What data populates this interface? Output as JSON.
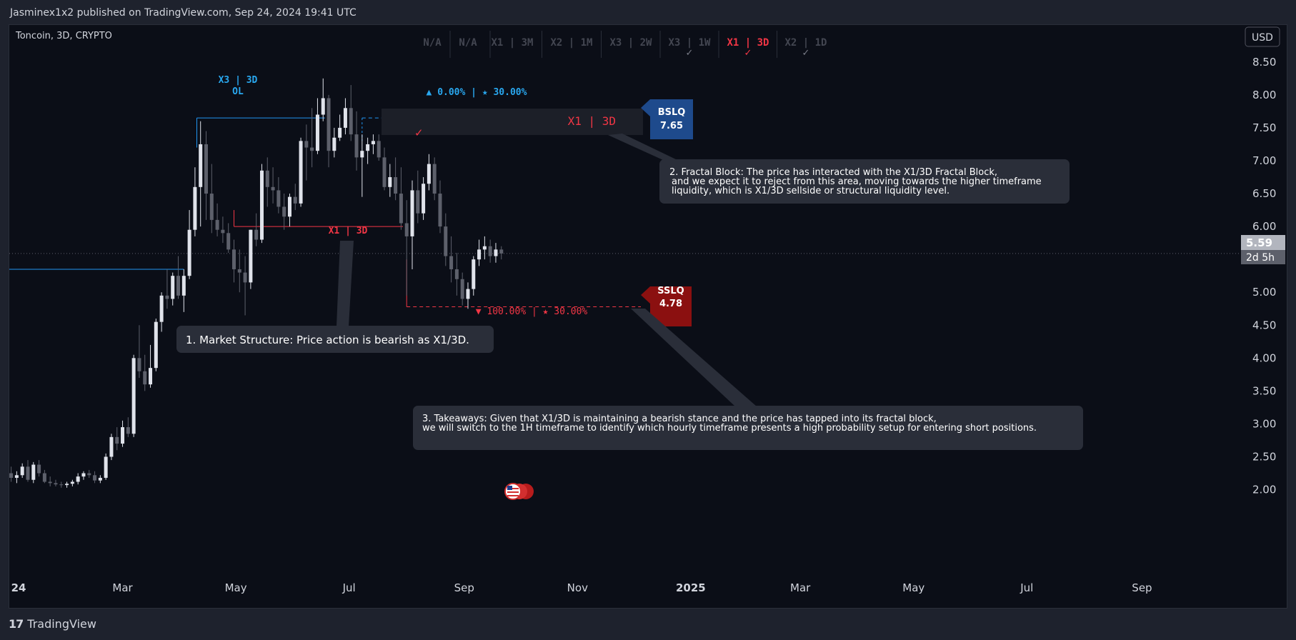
{
  "header": {
    "publish_line": "Jasminex1x2 published on TradingView.com, Sep 24, 2024 19:41 UTC"
  },
  "chart": {
    "symbol_line": "Toncoin, 3D, CRYPTO",
    "currency_button": "USD",
    "timeframe_boxes": [
      "N/A",
      "N/A",
      "X1 | 3M",
      "X2 | 1M",
      "X3 | 2W",
      "X3 | 1W",
      "X1 | 3D",
      "X2 | 1D"
    ],
    "price_axis_labels": [
      "8.50",
      "8.00",
      "7.50",
      "7.00",
      "6.50",
      "6.00",
      "5.50",
      "5.00",
      "4.50",
      "4.00",
      "3.50",
      "3.00",
      "2.50",
      "2.00"
    ],
    "time_axis_labels": [
      "24",
      "Mar",
      "May",
      "Jul",
      "Sep",
      "Nov",
      "2025",
      "Mar",
      "May",
      "Jul",
      "Sep"
    ],
    "current_price": "5.59",
    "countdown": "2d 5h",
    "annotations": {
      "ol_label_line1": "X3 | 3D",
      "ol_label_line2": "OL",
      "top_stats": "▲ 0.00% | ★ 30.00%",
      "fractal_block_label": "X1 | 3D",
      "bslq_name": "BSLQ",
      "bslq_value": "7.65",
      "structure_label": "X1 | 3D",
      "sslq_name": "SSLQ",
      "sslq_value": "4.78",
      "bottom_stats": "▼ 100.00% | ★ 30.00%"
    },
    "notes": {
      "note1": "1. Market Structure: Price action is bearish as X1/3D.",
      "note2_line1": "2. Fractal Block: The price has interacted with the X1/3D Fractal Block,",
      "note2_line2": "and we expect it to reject from this area, moving towards the higher timeframe",
      "note2_line3": "liquidity, which is X1/3D sellside or structural liquidity level.",
      "note3_line1": "3. Takeaways: Given that X1/3D is maintaining a bearish stance and the price has tapped into its fractal block,",
      "note3_line2": "we will switch to the 1H timeframe to identify which hourly timeframe presents a high probability setup for entering short positions."
    }
  },
  "footer": {
    "brand": "TradingView"
  },
  "colors": {
    "background": "#0b0e17",
    "candle_up": "#e0e3eb",
    "candle_down": "#5d606b",
    "accent_red": "#f23645",
    "accent_blue": "#2196f3",
    "bslq_box": "#1e4a8c",
    "sslq_box": "#8b1010"
  },
  "chart_data": {
    "type": "candlestick",
    "symbol": "Toncoin",
    "interval": "3D",
    "candles": [
      {
        "d": "2024-01-01",
        "o": 2.25,
        "h": 2.35,
        "l": 2.12,
        "c": 2.18
      },
      {
        "d": "2024-01-04",
        "o": 2.18,
        "h": 2.28,
        "l": 2.1,
        "c": 2.22
      },
      {
        "d": "2024-01-07",
        "o": 2.22,
        "h": 2.4,
        "l": 2.18,
        "c": 2.35
      },
      {
        "d": "2024-01-10",
        "o": 2.35,
        "h": 2.45,
        "l": 2.12,
        "c": 2.15
      },
      {
        "d": "2024-01-13",
        "o": 2.15,
        "h": 2.42,
        "l": 2.1,
        "c": 2.38
      },
      {
        "d": "2024-01-16",
        "o": 2.38,
        "h": 2.45,
        "l": 2.2,
        "c": 2.25
      },
      {
        "d": "2024-01-19",
        "o": 2.25,
        "h": 2.3,
        "l": 2.1,
        "c": 2.12
      },
      {
        "d": "2024-01-22",
        "o": 2.12,
        "h": 2.2,
        "l": 2.05,
        "c": 2.1
      },
      {
        "d": "2024-01-25",
        "o": 2.1,
        "h": 2.15,
        "l": 2.05,
        "c": 2.08
      },
      {
        "d": "2024-01-28",
        "o": 2.08,
        "h": 2.12,
        "l": 2.03,
        "c": 2.07
      },
      {
        "d": "2024-01-31",
        "o": 2.07,
        "h": 2.12,
        "l": 2.03,
        "c": 2.09
      },
      {
        "d": "2024-02-03",
        "o": 2.09,
        "h": 2.15,
        "l": 2.05,
        "c": 2.12
      },
      {
        "d": "2024-02-06",
        "o": 2.12,
        "h": 2.25,
        "l": 2.08,
        "c": 2.2
      },
      {
        "d": "2024-02-09",
        "o": 2.2,
        "h": 2.28,
        "l": 2.15,
        "c": 2.25
      },
      {
        "d": "2024-02-12",
        "o": 2.25,
        "h": 2.3,
        "l": 2.18,
        "c": 2.22
      },
      {
        "d": "2024-02-15",
        "o": 2.22,
        "h": 2.28,
        "l": 2.1,
        "c": 2.14
      },
      {
        "d": "2024-02-18",
        "o": 2.14,
        "h": 2.22,
        "l": 2.1,
        "c": 2.18
      },
      {
        "d": "2024-02-21",
        "o": 2.18,
        "h": 2.55,
        "l": 2.15,
        "c": 2.5
      },
      {
        "d": "2024-02-24",
        "o": 2.5,
        "h": 2.85,
        "l": 2.45,
        "c": 2.8
      },
      {
        "d": "2024-02-27",
        "o": 2.8,
        "h": 2.95,
        "l": 2.6,
        "c": 2.7
      },
      {
        "d": "2024-03-01",
        "o": 2.7,
        "h": 3.05,
        "l": 2.65,
        "c": 2.95
      },
      {
        "d": "2024-03-04",
        "o": 2.95,
        "h": 3.1,
        "l": 2.8,
        "c": 2.85
      },
      {
        "d": "2024-03-07",
        "o": 2.85,
        "h": 4.05,
        "l": 2.8,
        "c": 4.0
      },
      {
        "d": "2024-03-10",
        "o": 4.0,
        "h": 4.5,
        "l": 3.7,
        "c": 3.8
      },
      {
        "d": "2024-03-13",
        "o": 3.8,
        "h": 4.05,
        "l": 3.5,
        "c": 3.6
      },
      {
        "d": "2024-03-16",
        "o": 3.6,
        "h": 4.2,
        "l": 3.55,
        "c": 3.85
      },
      {
        "d": "2024-03-19",
        "o": 3.85,
        "h": 4.6,
        "l": 3.8,
        "c": 4.55
      },
      {
        "d": "2024-03-22",
        "o": 4.55,
        "h": 5.0,
        "l": 4.4,
        "c": 4.95
      },
      {
        "d": "2024-03-25",
        "o": 4.95,
        "h": 5.35,
        "l": 4.75,
        "c": 4.9
      },
      {
        "d": "2024-03-28",
        "o": 4.9,
        "h": 5.3,
        "l": 4.8,
        "c": 5.25
      },
      {
        "d": "2024-03-31",
        "o": 5.25,
        "h": 5.55,
        "l": 4.9,
        "c": 4.95
      },
      {
        "d": "2024-04-03",
        "o": 4.95,
        "h": 5.35,
        "l": 4.7,
        "c": 5.25
      },
      {
        "d": "2024-04-06",
        "o": 5.25,
        "h": 6.25,
        "l": 5.2,
        "c": 5.95
      },
      {
        "d": "2024-04-09",
        "o": 5.95,
        "h": 6.9,
        "l": 5.85,
        "c": 6.6
      },
      {
        "d": "2024-04-12",
        "o": 6.6,
        "h": 7.6,
        "l": 6.0,
        "c": 7.25
      },
      {
        "d": "2024-04-15",
        "o": 7.25,
        "h": 7.45,
        "l": 6.1,
        "c": 6.5
      },
      {
        "d": "2024-04-18",
        "o": 6.5,
        "h": 6.95,
        "l": 5.9,
        "c": 6.1
      },
      {
        "d": "2024-04-21",
        "o": 6.1,
        "h": 6.35,
        "l": 5.85,
        "c": 5.95
      },
      {
        "d": "2024-04-24",
        "o": 5.95,
        "h": 6.15,
        "l": 5.75,
        "c": 5.9
      },
      {
        "d": "2024-04-27",
        "o": 5.9,
        "h": 6.05,
        "l": 5.6,
        "c": 5.65
      },
      {
        "d": "2024-04-30",
        "o": 5.65,
        "h": 5.8,
        "l": 5.15,
        "c": 5.35
      },
      {
        "d": "2024-05-03",
        "o": 5.35,
        "h": 5.65,
        "l": 5.0,
        "c": 5.3
      },
      {
        "d": "2024-05-06",
        "o": 5.3,
        "h": 5.55,
        "l": 4.65,
        "c": 5.15
      },
      {
        "d": "2024-05-09",
        "o": 5.15,
        "h": 5.95,
        "l": 5.05,
        "c": 5.95
      },
      {
        "d": "2024-05-12",
        "o": 5.95,
        "h": 6.2,
        "l": 5.7,
        "c": 5.8
      },
      {
        "d": "2024-05-15",
        "o": 5.8,
        "h": 6.95,
        "l": 5.75,
        "c": 6.85
      },
      {
        "d": "2024-05-18",
        "o": 6.85,
        "h": 7.05,
        "l": 6.3,
        "c": 6.6
      },
      {
        "d": "2024-05-21",
        "o": 6.6,
        "h": 6.9,
        "l": 6.35,
        "c": 6.55
      },
      {
        "d": "2024-05-24",
        "o": 6.55,
        "h": 6.75,
        "l": 6.2,
        "c": 6.3
      },
      {
        "d": "2024-05-27",
        "o": 6.3,
        "h": 6.5,
        "l": 5.95,
        "c": 6.15
      },
      {
        "d": "2024-05-30",
        "o": 6.15,
        "h": 6.5,
        "l": 6.0,
        "c": 6.45
      },
      {
        "d": "2024-06-02",
        "o": 6.45,
        "h": 6.65,
        "l": 6.25,
        "c": 6.35
      },
      {
        "d": "2024-06-05",
        "o": 6.35,
        "h": 7.35,
        "l": 6.3,
        "c": 7.3
      },
      {
        "d": "2024-06-08",
        "o": 7.3,
        "h": 7.55,
        "l": 6.7,
        "c": 7.2
      },
      {
        "d": "2024-06-11",
        "o": 7.2,
        "h": 7.8,
        "l": 6.9,
        "c": 7.15
      },
      {
        "d": "2024-06-14",
        "o": 7.15,
        "h": 7.95,
        "l": 7.1,
        "c": 7.7
      },
      {
        "d": "2024-06-17",
        "o": 7.7,
        "h": 8.25,
        "l": 7.6,
        "c": 7.95
      },
      {
        "d": "2024-06-20",
        "o": 7.95,
        "h": 8.0,
        "l": 6.9,
        "c": 7.15
      },
      {
        "d": "2024-06-23",
        "o": 7.15,
        "h": 7.5,
        "l": 7.05,
        "c": 7.35
      },
      {
        "d": "2024-06-26",
        "o": 7.35,
        "h": 7.7,
        "l": 7.3,
        "c": 7.5
      },
      {
        "d": "2024-06-29",
        "o": 7.5,
        "h": 7.95,
        "l": 7.4,
        "c": 7.8
      },
      {
        "d": "2024-07-02",
        "o": 7.8,
        "h": 8.15,
        "l": 7.3,
        "c": 7.4
      },
      {
        "d": "2024-07-05",
        "o": 7.4,
        "h": 7.75,
        "l": 6.85,
        "c": 7.05
      },
      {
        "d": "2024-07-08",
        "o": 7.05,
        "h": 7.4,
        "l": 6.45,
        "c": 7.15
      },
      {
        "d": "2024-07-11",
        "o": 7.15,
        "h": 7.35,
        "l": 6.95,
        "c": 7.25
      },
      {
        "d": "2024-07-14",
        "o": 7.25,
        "h": 7.4,
        "l": 7.1,
        "c": 7.3
      },
      {
        "d": "2024-07-17",
        "o": 7.3,
        "h": 7.4,
        "l": 7.0,
        "c": 7.05
      },
      {
        "d": "2024-07-20",
        "o": 7.05,
        "h": 7.2,
        "l": 6.55,
        "c": 6.6
      },
      {
        "d": "2024-07-23",
        "o": 6.6,
        "h": 6.95,
        "l": 6.45,
        "c": 6.75
      },
      {
        "d": "2024-07-26",
        "o": 6.75,
        "h": 7.05,
        "l": 6.4,
        "c": 6.5
      },
      {
        "d": "2024-07-29",
        "o": 6.5,
        "h": 6.9,
        "l": 5.95,
        "c": 6.05
      },
      {
        "d": "2024-08-01",
        "o": 6.05,
        "h": 6.4,
        "l": 4.95,
        "c": 5.85
      },
      {
        "d": "2024-08-04",
        "o": 5.85,
        "h": 6.7,
        "l": 5.35,
        "c": 6.55
      },
      {
        "d": "2024-08-07",
        "o": 6.55,
        "h": 6.85,
        "l": 6.05,
        "c": 6.2
      },
      {
        "d": "2024-08-10",
        "o": 6.2,
        "h": 6.75,
        "l": 6.1,
        "c": 6.65
      },
      {
        "d": "2024-08-13",
        "o": 6.65,
        "h": 7.1,
        "l": 6.55,
        "c": 6.95
      },
      {
        "d": "2024-08-16",
        "o": 6.95,
        "h": 7.05,
        "l": 6.4,
        "c": 6.5
      },
      {
        "d": "2024-08-19",
        "o": 6.5,
        "h": 6.7,
        "l": 5.9,
        "c": 6.0
      },
      {
        "d": "2024-08-22",
        "o": 6.0,
        "h": 6.2,
        "l": 5.4,
        "c": 5.55
      },
      {
        "d": "2024-08-25",
        "o": 5.55,
        "h": 5.85,
        "l": 5.15,
        "c": 5.35
      },
      {
        "d": "2024-08-28",
        "o": 5.35,
        "h": 5.6,
        "l": 4.95,
        "c": 5.2
      },
      {
        "d": "2024-08-31",
        "o": 5.2,
        "h": 5.3,
        "l": 4.8,
        "c": 4.9
      },
      {
        "d": "2024-09-03",
        "o": 4.9,
        "h": 5.15,
        "l": 4.75,
        "c": 5.05
      },
      {
        "d": "2024-09-06",
        "o": 5.05,
        "h": 5.55,
        "l": 4.95,
        "c": 5.5
      },
      {
        "d": "2024-09-09",
        "o": 5.5,
        "h": 5.8,
        "l": 5.4,
        "c": 5.65
      },
      {
        "d": "2024-09-12",
        "o": 5.65,
        "h": 5.85,
        "l": 5.5,
        "c": 5.7
      },
      {
        "d": "2024-09-15",
        "o": 5.7,
        "h": 5.8,
        "l": 5.45,
        "c": 5.55
      },
      {
        "d": "2024-09-18",
        "o": 5.55,
        "h": 5.75,
        "l": 5.45,
        "c": 5.65
      },
      {
        "d": "2024-09-21",
        "o": 5.65,
        "h": 5.7,
        "l": 5.5,
        "c": 5.59
      }
    ],
    "levels": {
      "bslq": 7.65,
      "sslq": 4.78,
      "x3_3d_ol": 7.65,
      "x1_3d_structure": 6.0,
      "left_blue_line": 5.35,
      "current": 5.59
    },
    "y_range": [
      1.55,
      8.65
    ],
    "x_range": [
      "2023-12-31",
      "2025-10-22"
    ],
    "y_ticks": [
      2.0,
      2.5,
      3.0,
      3.5,
      4.0,
      4.5,
      5.0,
      5.5,
      6.0,
      6.5,
      7.0,
      7.5,
      8.0,
      8.5
    ],
    "x_ticks": [
      {
        "label": "24",
        "date": "2024-01-01"
      },
      {
        "label": "Mar",
        "date": "2024-03-01"
      },
      {
        "label": "May",
        "date": "2024-05-01"
      },
      {
        "label": "Jul",
        "date": "2024-07-01"
      },
      {
        "label": "Sep",
        "date": "2024-09-01"
      },
      {
        "label": "Nov",
        "date": "2024-11-01"
      },
      {
        "label": "2025",
        "date": "2025-01-01"
      },
      {
        "label": "Mar",
        "date": "2025-03-01"
      },
      {
        "label": "May",
        "date": "2025-05-01"
      },
      {
        "label": "Jul",
        "date": "2025-07-01"
      },
      {
        "label": "Sep",
        "date": "2025-09-01"
      }
    ]
  }
}
